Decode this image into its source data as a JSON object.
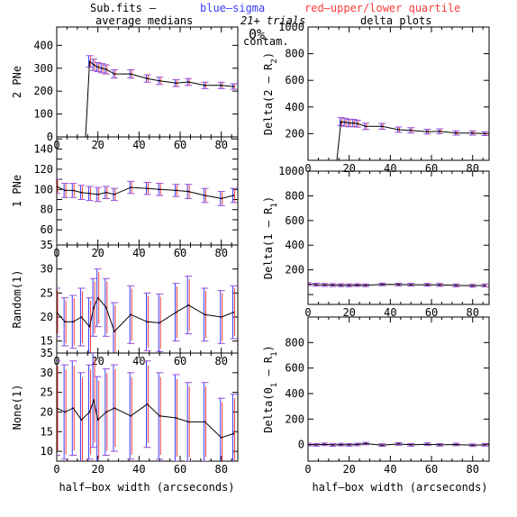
{
  "header": {
    "file": "Sub.fits",
    "dash": "–",
    "blue_label": "blue–sigma",
    "red_label": "red–upper/lower quartile",
    "blue_color": "#3b3bff",
    "red_color": "#ff3b3b",
    "trials": "21+ trials",
    "contam_pct": "0%",
    "contam_label": "contam.",
    "left_title": "average medians",
    "right_title": "delta plots"
  },
  "xlabel": "half–box width (arcseconds)",
  "chart_data": [
    {
      "type": "line",
      "panel": "left-1",
      "ylabel": "2 PNe",
      "xlim": [
        0,
        88
      ],
      "ylim": [
        0,
        480
      ],
      "xticks": [
        0,
        20,
        40,
        60,
        80
      ],
      "yticks": [
        0,
        100,
        200,
        300,
        400
      ],
      "x": [
        0,
        14,
        16,
        18,
        20,
        22,
        24,
        28,
        36,
        44,
        50,
        58,
        64,
        72,
        80,
        86
      ],
      "y": [
        0,
        0,
        330,
        315,
        305,
        300,
        295,
        275,
        275,
        255,
        245,
        235,
        240,
        225,
        225,
        220
      ],
      "err": [
        0,
        0,
        25,
        25,
        20,
        20,
        20,
        18,
        18,
        16,
        16,
        15,
        15,
        14,
        14,
        12
      ],
      "series_color": "#000000"
    },
    {
      "type": "line",
      "panel": "left-2",
      "ylabel": "1 PNe",
      "xlim": [
        0,
        88
      ],
      "ylim": [
        45,
        152
      ],
      "xticks": [
        0,
        20,
        40,
        60,
        80
      ],
      "yticks": [
        60,
        70,
        80,
        90,
        100,
        110,
        120,
        130,
        140,
        150
      ],
      "ytick_labels": [
        60,
        80,
        100,
        120,
        140
      ],
      "x": [
        0,
        4,
        8,
        12,
        16,
        20,
        24,
        28,
        36,
        44,
        50,
        58,
        64,
        72,
        80,
        86
      ],
      "y": [
        103,
        99,
        99,
        97,
        96,
        95,
        97,
        95,
        102,
        101,
        100,
        99,
        98,
        94,
        91,
        94
      ],
      "err": [
        7,
        7,
        7,
        7,
        7,
        7,
        6,
        6,
        6,
        6,
        6,
        6,
        7,
        7,
        7,
        7
      ]
    },
    {
      "type": "line",
      "panel": "left-3",
      "ylabel": "Random(1)",
      "xlim": [
        0,
        88
      ],
      "ylim": [
        12.5,
        35
      ],
      "xticks": [
        0,
        20,
        40,
        60,
        80
      ],
      "yticks": [
        15,
        20,
        25,
        30,
        35
      ],
      "x": [
        0,
        4,
        8,
        12,
        16,
        18,
        20,
        24,
        28,
        36,
        44,
        50,
        58,
        64,
        72,
        80,
        86
      ],
      "y": [
        21,
        19,
        19,
        20,
        18,
        22,
        24,
        22,
        17,
        20.5,
        19,
        18.8,
        21,
        22.5,
        20.5,
        20,
        21
      ],
      "err": [
        5,
        5,
        5.5,
        6,
        6,
        6,
        6,
        6,
        6,
        6,
        6,
        6,
        6,
        6,
        5.5,
        5.5,
        5.5
      ]
    },
    {
      "type": "line",
      "panel": "left-4",
      "ylabel": "None(1)",
      "xlim": [
        0,
        88
      ],
      "ylim": [
        7.5,
        35
      ],
      "xticks": [
        0,
        20,
        40,
        60,
        80
      ],
      "yticks": [
        10,
        15,
        20,
        25,
        30,
        35
      ],
      "x": [
        0,
        4,
        8,
        12,
        16,
        18,
        20,
        24,
        28,
        36,
        44,
        50,
        58,
        64,
        72,
        80,
        86
      ],
      "y": [
        21,
        20,
        21,
        18,
        20,
        23,
        18,
        20,
        21,
        19,
        22,
        19,
        18.5,
        17.5,
        17.5,
        13.5,
        14.5
      ],
      "err": [
        12,
        12,
        12,
        12,
        12,
        12,
        11,
        11,
        11,
        11,
        11,
        11,
        11,
        10,
        10,
        10,
        10
      ]
    },
    {
      "type": "line",
      "panel": "right-1",
      "ylabel": "Delta(2 – R",
      "ylabel_sub": "2",
      "xlim": [
        0,
        88
      ],
      "ylim": [
        0,
        1000
      ],
      "xticks": [
        0,
        20,
        40,
        60,
        80
      ],
      "yticks": [
        0,
        200,
        400,
        600,
        800,
        1000
      ],
      "ytick_labels": [
        200,
        400,
        600,
        800,
        1000
      ],
      "x": [
        0,
        14,
        16,
        18,
        20,
        22,
        24,
        28,
        36,
        44,
        50,
        58,
        64,
        72,
        80,
        86
      ],
      "y": [
        0,
        0,
        290,
        285,
        280,
        280,
        275,
        255,
        255,
        230,
        225,
        215,
        218,
        205,
        205,
        200
      ],
      "err": [
        0,
        0,
        30,
        30,
        28,
        28,
        26,
        24,
        22,
        20,
        20,
        18,
        18,
        16,
        16,
        14
      ]
    },
    {
      "type": "line",
      "panel": "right-2",
      "ylabel": "Delta(1 – R",
      "ylabel_sub": "1",
      "xlim": [
        0,
        88
      ],
      "ylim": [
        -80,
        1000
      ],
      "xticks": [
        0,
        20,
        40,
        60,
        80
      ],
      "yticks": [
        0,
        200,
        400,
        600,
        800,
        1000
      ],
      "ytick_labels": [
        200,
        400,
        600,
        800,
        1000
      ],
      "x": [
        0,
        4,
        8,
        12,
        16,
        20,
        24,
        28,
        36,
        44,
        50,
        58,
        64,
        72,
        80,
        86
      ],
      "y": [
        85,
        80,
        78,
        77,
        76,
        75,
        77,
        75,
        82,
        81,
        80,
        79,
        78,
        74,
        71,
        74
      ],
      "err": [
        12,
        12,
        12,
        12,
        12,
        12,
        11,
        11,
        11,
        11,
        11,
        11,
        12,
        12,
        12,
        12
      ]
    },
    {
      "type": "line",
      "panel": "right-3",
      "ylabel": "Delta(0",
      "ylabel_sub": "1",
      "ylabel_tail": " – R",
      "ylabel_sub2": "1",
      "xlim": [
        0,
        88
      ],
      "ylim": [
        -130,
        1000
      ],
      "xticks": [
        0,
        20,
        40,
        60,
        80
      ],
      "yticks": [
        0,
        200,
        400,
        600,
        800
      ],
      "ytick_labels": [
        0,
        200,
        400,
        600,
        800
      ],
      "x": [
        0,
        4,
        8,
        12,
        16,
        20,
        24,
        28,
        36,
        44,
        50,
        58,
        64,
        72,
        80,
        86
      ],
      "y": [
        0,
        -2,
        2,
        -3,
        0,
        -2,
        1,
        8,
        -4,
        5,
        -2,
        3,
        -2,
        1,
        -5,
        -2
      ],
      "err": [
        10,
        10,
        10,
        10,
        10,
        10,
        10,
        10,
        10,
        10,
        10,
        10,
        10,
        10,
        10,
        10
      ]
    }
  ]
}
